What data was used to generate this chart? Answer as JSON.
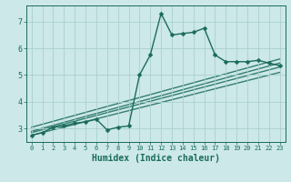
{
  "xlabel": "Humidex (Indice chaleur)",
  "bg_color": "#cce8e8",
  "grid_color": "#aacfcf",
  "line_color": "#1a6b5a",
  "xlim": [
    -0.5,
    23.5
  ],
  "ylim": [
    2.5,
    7.6
  ],
  "yticks": [
    3,
    4,
    5,
    6,
    7
  ],
  "xticks": [
    0,
    1,
    2,
    3,
    4,
    5,
    6,
    7,
    8,
    9,
    10,
    11,
    12,
    13,
    14,
    15,
    16,
    17,
    18,
    19,
    20,
    21,
    22,
    23
  ],
  "main_x": [
    0,
    1,
    2,
    3,
    4,
    5,
    6,
    7,
    8,
    9,
    10,
    11,
    12,
    13,
    14,
    15,
    16,
    17,
    18,
    19,
    20,
    21,
    22,
    23
  ],
  "main_y": [
    2.75,
    2.85,
    3.05,
    3.1,
    3.2,
    3.25,
    3.35,
    2.95,
    3.05,
    3.1,
    5.0,
    5.75,
    7.3,
    6.5,
    6.55,
    6.6,
    6.75,
    5.75,
    5.5,
    5.5,
    5.5,
    5.55,
    5.45,
    5.35
  ],
  "reg_lines": [
    {
      "x": [
        0,
        23
      ],
      "y": [
        2.75,
        5.1
      ]
    },
    {
      "x": [
        0,
        23
      ],
      "y": [
        2.85,
        5.3
      ]
    },
    {
      "x": [
        0,
        23
      ],
      "y": [
        2.9,
        5.45
      ]
    },
    {
      "x": [
        0,
        23
      ],
      "y": [
        3.05,
        5.6
      ]
    }
  ],
  "marker_size": 2.5,
  "line_width": 1.0,
  "xlabel_fontsize": 7,
  "tick_fontsize_x": 5,
  "tick_fontsize_y": 6
}
